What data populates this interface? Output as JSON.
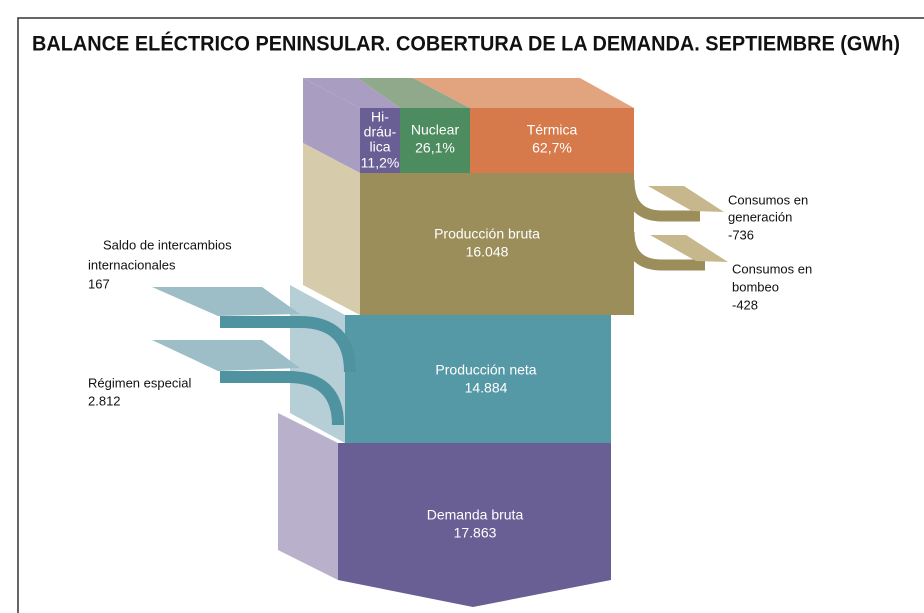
{
  "title": "BALANCE ELÉCTRICO PENINSULAR. COBERTURA DE LA DEMANDA. SEPTIEMBRE (GWh)",
  "sources": [
    {
      "name": [
        "Hi-",
        "dráu-",
        "lica"
      ],
      "share": "11,2%"
    },
    {
      "name": [
        "Nuclear"
      ],
      "share": "26,1%"
    },
    {
      "name": [
        "Térmica"
      ],
      "share": "62,7%"
    }
  ],
  "blocks": [
    {
      "name": "Producción bruta",
      "value": "16.048"
    },
    {
      "name": "Producción neta",
      "value": "14.884"
    },
    {
      "name": "Demanda bruta",
      "value": "17.863"
    }
  ],
  "outputs": [
    {
      "name": [
        "Consumos en",
        "generación"
      ],
      "value": "-736"
    },
    {
      "name": [
        "Consumos en",
        "bombeo"
      ],
      "value": "-428"
    }
  ],
  "inputs": [
    {
      "name": [
        "Saldo de intercambios",
        "internacionales"
      ],
      "value": "167"
    },
    {
      "name": [
        "Régimen especial"
      ],
      "value": "2.812"
    }
  ]
}
